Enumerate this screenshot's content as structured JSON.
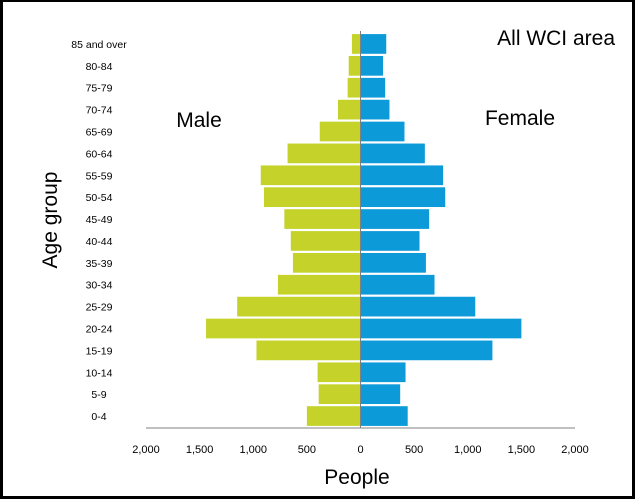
{
  "chart_data": {
    "type": "bar",
    "orientation": "horizontal",
    "layout": "population-pyramid",
    "area_label": "All WCI area",
    "xlabel": "People",
    "ylabel": "Age group",
    "xlim": [
      -2000,
      2000
    ],
    "xticks": [
      -2000,
      -1500,
      -1000,
      -500,
      0,
      500,
      1000,
      1500,
      2000
    ],
    "xtick_labels": [
      "2,000",
      "1,500",
      "1,000",
      "500",
      "0",
      "500",
      "1,000",
      "1,500",
      "2,000"
    ],
    "grid": false,
    "categories": [
      "0-4",
      "5-9",
      "10-14",
      "15-19",
      "20-24",
      "25-29",
      "30-34",
      "35-39",
      "40-44",
      "45-49",
      "50-54",
      "55-59",
      "60-64",
      "65-69",
      "70-74",
      "75-79",
      "80-84",
      "85 and over"
    ],
    "series": [
      {
        "name": "Male",
        "color": "#c4d22a",
        "values": [
          500,
          390,
          400,
          970,
          1440,
          1150,
          770,
          630,
          650,
          710,
          900,
          930,
          680,
          380,
          210,
          120,
          110,
          80
        ]
      },
      {
        "name": "Female",
        "color": "#0c9ad8",
        "values": [
          440,
          370,
          420,
          1230,
          1500,
          1070,
          690,
          610,
          550,
          640,
          790,
          770,
          600,
          410,
          270,
          230,
          210,
          240
        ]
      }
    ]
  }
}
